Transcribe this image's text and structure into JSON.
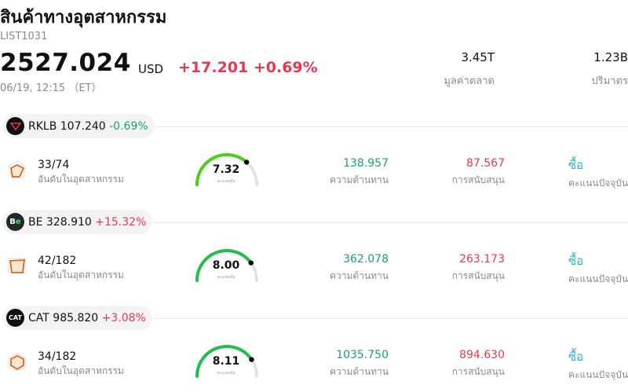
{
  "header": {
    "title": "สินค้าทางอุตสาหกรรม",
    "code": "LIST1031",
    "price": "2527.024",
    "currency": "USD",
    "change": "+17.201 +0.69%",
    "time": "06/19, 12:15 （ET）"
  },
  "stats": {
    "market_cap_value": "3.45T",
    "market_cap_label": "มูลค่าตลาด",
    "volume_value": "1.23B",
    "volume_label": "ปริมาตร"
  },
  "rows": [
    {
      "symbol": "RKLB",
      "price": "107.240",
      "change": "-0.69%",
      "logo": "rocket-lab-logo",
      "rank": "33/74",
      "rank_label": "อันดับในอุตสาหกรรม",
      "score": "7.32",
      "score_fraction": 0.73,
      "score_label": "คะแนนหุ้น",
      "resistance": "138.957",
      "resistance_label": "ความต้านทาน",
      "support": "87.567",
      "support_label": "การสนับสนุน",
      "signal": "ซื้อ",
      "signal_label": "คะแนนปัจจุบัน",
      "gauge_color": "#4ccd1b"
    },
    {
      "symbol": "BE",
      "price": "328.910",
      "change": "+15.32%",
      "logo": "be-logo",
      "logo_text": "Be",
      "rank": "42/182",
      "rank_label": "อันดับในอุตสาหกรรม",
      "score": "8.00",
      "score_fraction": 0.8,
      "score_label": "คะแนนหุ้น",
      "resistance": "362.078",
      "resistance_label": "ความต้านทาน",
      "support": "263.173",
      "support_label": "การสนับสนุน",
      "signal": "ซื้อ",
      "signal_label": "คะแนนปัจจุบัน",
      "gauge_color": "#1fbf4a"
    },
    {
      "symbol": "CAT",
      "price": "985.820",
      "change": "+3.08%",
      "logo": "cat-logo",
      "logo_text": "CAT",
      "rank": "34/182",
      "rank_label": "อันดับในอุตสาหกรรม",
      "score": "8.11",
      "score_fraction": 0.81,
      "score_label": "คะแนนหุ้น",
      "resistance": "1035.750",
      "resistance_label": "ความต้านทาน",
      "support": "894.630",
      "support_label": "การสนับสนุน",
      "signal": "ซื้อ",
      "signal_label": "คะแนนปัจจุบัน",
      "gauge_color": "#1fbf4a"
    }
  ]
}
